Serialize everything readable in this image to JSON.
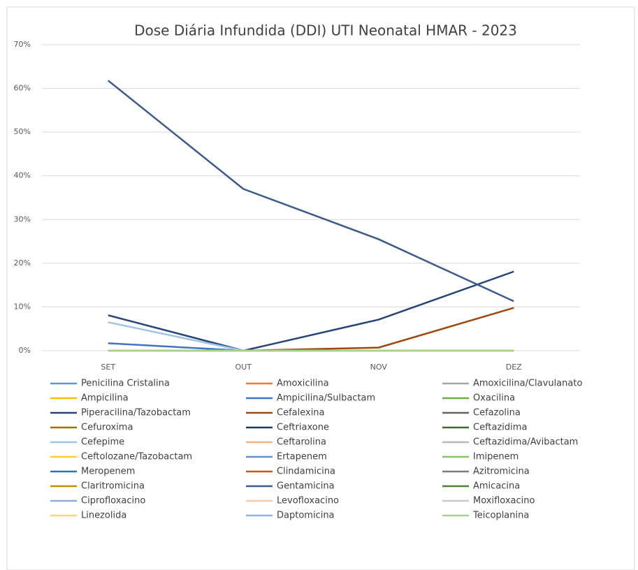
{
  "chart_data": {
    "type": "line",
    "title": "Dose Diária Infundida (DDI) UTI Neonatal HMAR - 2023",
    "categories": [
      "SET",
      "OUT",
      "NOV",
      "DEZ"
    ],
    "ylim": [
      0,
      70
    ],
    "yticks": [
      {
        "value": 0,
        "label": "0%"
      },
      {
        "value": 10,
        "label": "10%"
      },
      {
        "value": 20,
        "label": "20%"
      },
      {
        "value": 30,
        "label": "30%"
      },
      {
        "value": 40,
        "label": "40%"
      },
      {
        "value": 50,
        "label": "50%"
      },
      {
        "value": 60,
        "label": "60%"
      },
      {
        "value": 70,
        "label": "70%"
      }
    ],
    "grid": true,
    "legend": "bottom",
    "series": [
      {
        "name": "Penicilina Cristalina",
        "color": "#5b9bd5",
        "values": [
          0,
          0,
          0,
          0
        ]
      },
      {
        "name": "Amoxicilina",
        "color": "#ed7d31",
        "values": [
          0,
          0,
          0,
          0
        ]
      },
      {
        "name": "Amoxicilina/Clavulanato",
        "color": "#a5a5a5",
        "values": [
          0,
          0,
          0,
          0
        ]
      },
      {
        "name": "Ampicilina",
        "color": "#ffc000",
        "values": [
          0,
          0,
          0,
          0
        ]
      },
      {
        "name": "Ampicilina/Sulbactam",
        "color": "#4472c4",
        "values": [
          1.7,
          0,
          0,
          0
        ]
      },
      {
        "name": "Oxacilina",
        "color": "#70ad47",
        "values": [
          0,
          0,
          0,
          0
        ]
      },
      {
        "name": "Piperacilina/Tazobactam",
        "color": "#264478",
        "values": [
          8.1,
          0,
          7.1,
          18.1
        ]
      },
      {
        "name": "Cefalexina",
        "color": "#9e480e",
        "values": [
          0,
          0,
          0.7,
          9.8
        ]
      },
      {
        "name": "Cefazolina",
        "color": "#636363",
        "values": [
          0,
          0,
          0,
          0
        ]
      },
      {
        "name": "Cefuroxima",
        "color": "#997300",
        "values": [
          0,
          0,
          0,
          0
        ]
      },
      {
        "name": "Ceftriaxone",
        "color": "#1f3864",
        "values": [
          0,
          0,
          0,
          0
        ]
      },
      {
        "name": "Ceftazidima",
        "color": "#43682b",
        "values": [
          0,
          0,
          0,
          0
        ]
      },
      {
        "name": "Cefepime",
        "color": "#9dc3e6",
        "values": [
          6.5,
          0,
          0,
          0
        ]
      },
      {
        "name": "Ceftarolina",
        "color": "#f4b183",
        "values": [
          0,
          0,
          0,
          0
        ]
      },
      {
        "name": "Ceftazidima/Avibactam",
        "color": "#b7b7b7",
        "values": [
          0,
          0,
          0,
          0
        ]
      },
      {
        "name": "Ceftolozane/Tazobactam",
        "color": "#ffcd33",
        "values": [
          0,
          0,
          0,
          0
        ]
      },
      {
        "name": "Ertapenem",
        "color": "#698ed0",
        "values": [
          0,
          0,
          0,
          0
        ]
      },
      {
        "name": "Imipenem",
        "color": "#8cc168",
        "values": [
          0,
          0,
          0,
          0
        ]
      },
      {
        "name": "Meropenem",
        "color": "#2e75b6",
        "values": [
          0,
          0,
          0,
          0
        ]
      },
      {
        "name": "Clindamicina",
        "color": "#c55a11",
        "values": [
          0,
          0,
          0,
          0
        ]
      },
      {
        "name": "Azitromicina",
        "color": "#7b7b7b",
        "values": [
          0,
          0,
          0,
          0
        ]
      },
      {
        "name": "Claritromicina",
        "color": "#bf9000",
        "values": [
          0,
          0,
          0,
          0
        ]
      },
      {
        "name": "Gentamicina",
        "color": "#3c5a8c",
        "values": [
          61.8,
          37,
          25.5,
          11.3
        ]
      },
      {
        "name": "Amicacina",
        "color": "#548235",
        "values": [
          0,
          0,
          0,
          0
        ]
      },
      {
        "name": "Ciprofloxacino",
        "color": "#8faadc",
        "values": [
          0,
          0,
          0,
          0
        ]
      },
      {
        "name": "Levofloxacino",
        "color": "#f8cbad",
        "values": [
          0,
          0,
          0,
          0
        ]
      },
      {
        "name": "Moxifloxacino",
        "color": "#c9c9c9",
        "values": [
          0,
          0,
          0,
          0
        ]
      },
      {
        "name": "Linezolida",
        "color": "#ffd966",
        "values": [
          0,
          0,
          0,
          0
        ]
      },
      {
        "name": "Daptomicina",
        "color": "#8fb4e3",
        "values": [
          0,
          0,
          0,
          0
        ]
      },
      {
        "name": "Teicoplanina",
        "color": "#a9d18e",
        "values": [
          0,
          0,
          0,
          0
        ]
      }
    ]
  }
}
